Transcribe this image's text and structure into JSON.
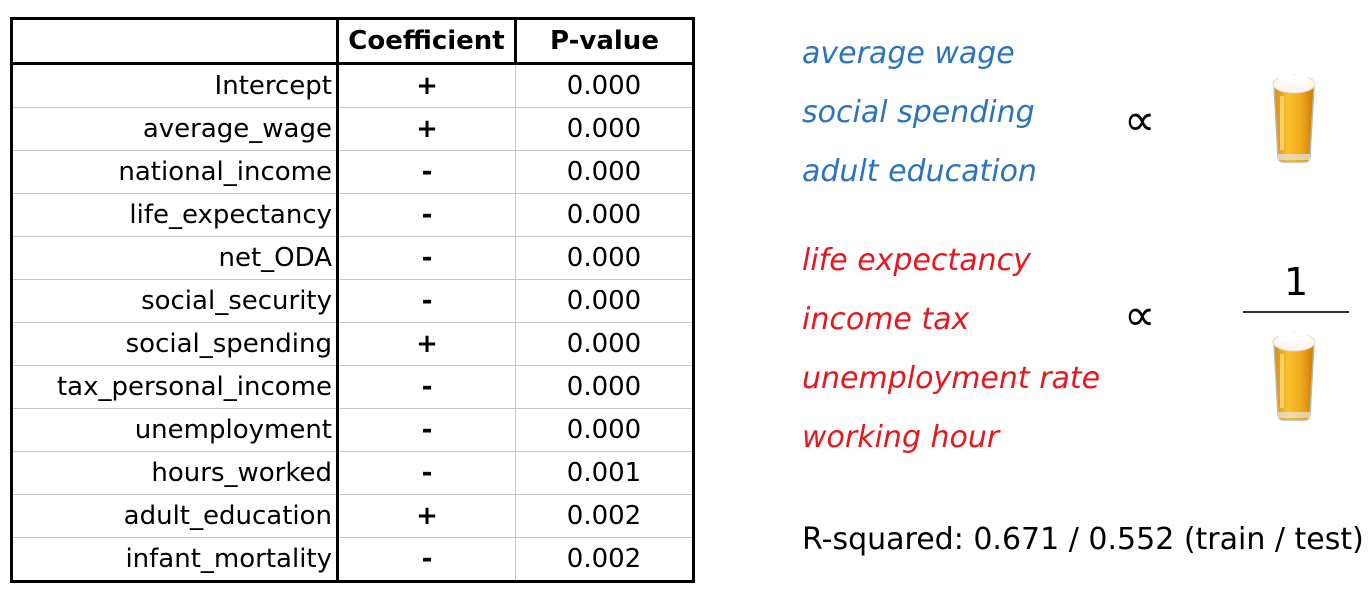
{
  "table": {
    "headers": [
      "",
      "Coefficient",
      "P-value"
    ],
    "rows": [
      {
        "variable": "Intercept",
        "sign": "+",
        "p_value": "0.000"
      },
      {
        "variable": "average_wage",
        "sign": "+",
        "p_value": "0.000"
      },
      {
        "variable": "national_income",
        "sign": "-",
        "p_value": "0.000"
      },
      {
        "variable": "life_expectancy",
        "sign": "-",
        "p_value": "0.000"
      },
      {
        "variable": "net_ODA",
        "sign": "-",
        "p_value": "0.000"
      },
      {
        "variable": "social_security",
        "sign": "-",
        "p_value": "0.000"
      },
      {
        "variable": "social_spending",
        "sign": "+",
        "p_value": "0.000"
      },
      {
        "variable": "tax_personal_income",
        "sign": "-",
        "p_value": "0.000"
      },
      {
        "variable": "unemployment",
        "sign": "-",
        "p_value": "0.000"
      },
      {
        "variable": "hours_worked",
        "sign": "-",
        "p_value": "0.001"
      },
      {
        "variable": "adult_education",
        "sign": "+",
        "p_value": "0.002"
      },
      {
        "variable": "infant_mortality",
        "sign": "-",
        "p_value": "0.002"
      }
    ]
  },
  "chart_data": {
    "type": "table",
    "columns": [
      "",
      "Coefficient",
      "P-value"
    ],
    "rows": [
      [
        "Intercept",
        "+",
        0.0
      ],
      [
        "average_wage",
        "+",
        0.0
      ],
      [
        "national_income",
        "-",
        0.0
      ],
      [
        "life_expectancy",
        "-",
        0.0
      ],
      [
        "net_ODA",
        "-",
        0.0
      ],
      [
        "social_security",
        "-",
        0.0
      ],
      [
        "social_spending",
        "+",
        0.0
      ],
      [
        "tax_personal_income",
        "-",
        0.0
      ],
      [
        "unemployment",
        "-",
        0.0
      ],
      [
        "hours_worked",
        "-",
        0.001
      ],
      [
        "adult_education",
        "+",
        0.002
      ],
      [
        "infant_mortality",
        "-",
        0.002
      ]
    ]
  },
  "annotation": {
    "positive_factors": [
      "average wage",
      "social spending",
      "adult education"
    ],
    "negative_factors": [
      "life expectancy",
      "income tax",
      "unemployment rate",
      "working hour"
    ],
    "proportional_symbol": "∝",
    "numerator": "1",
    "r_squared": "R-squared: 0.671 / 0.552 (train / test)",
    "positive_color": "#2a73c0",
    "negative_color": "#e8161d",
    "icon": "beer-glass-icon"
  }
}
